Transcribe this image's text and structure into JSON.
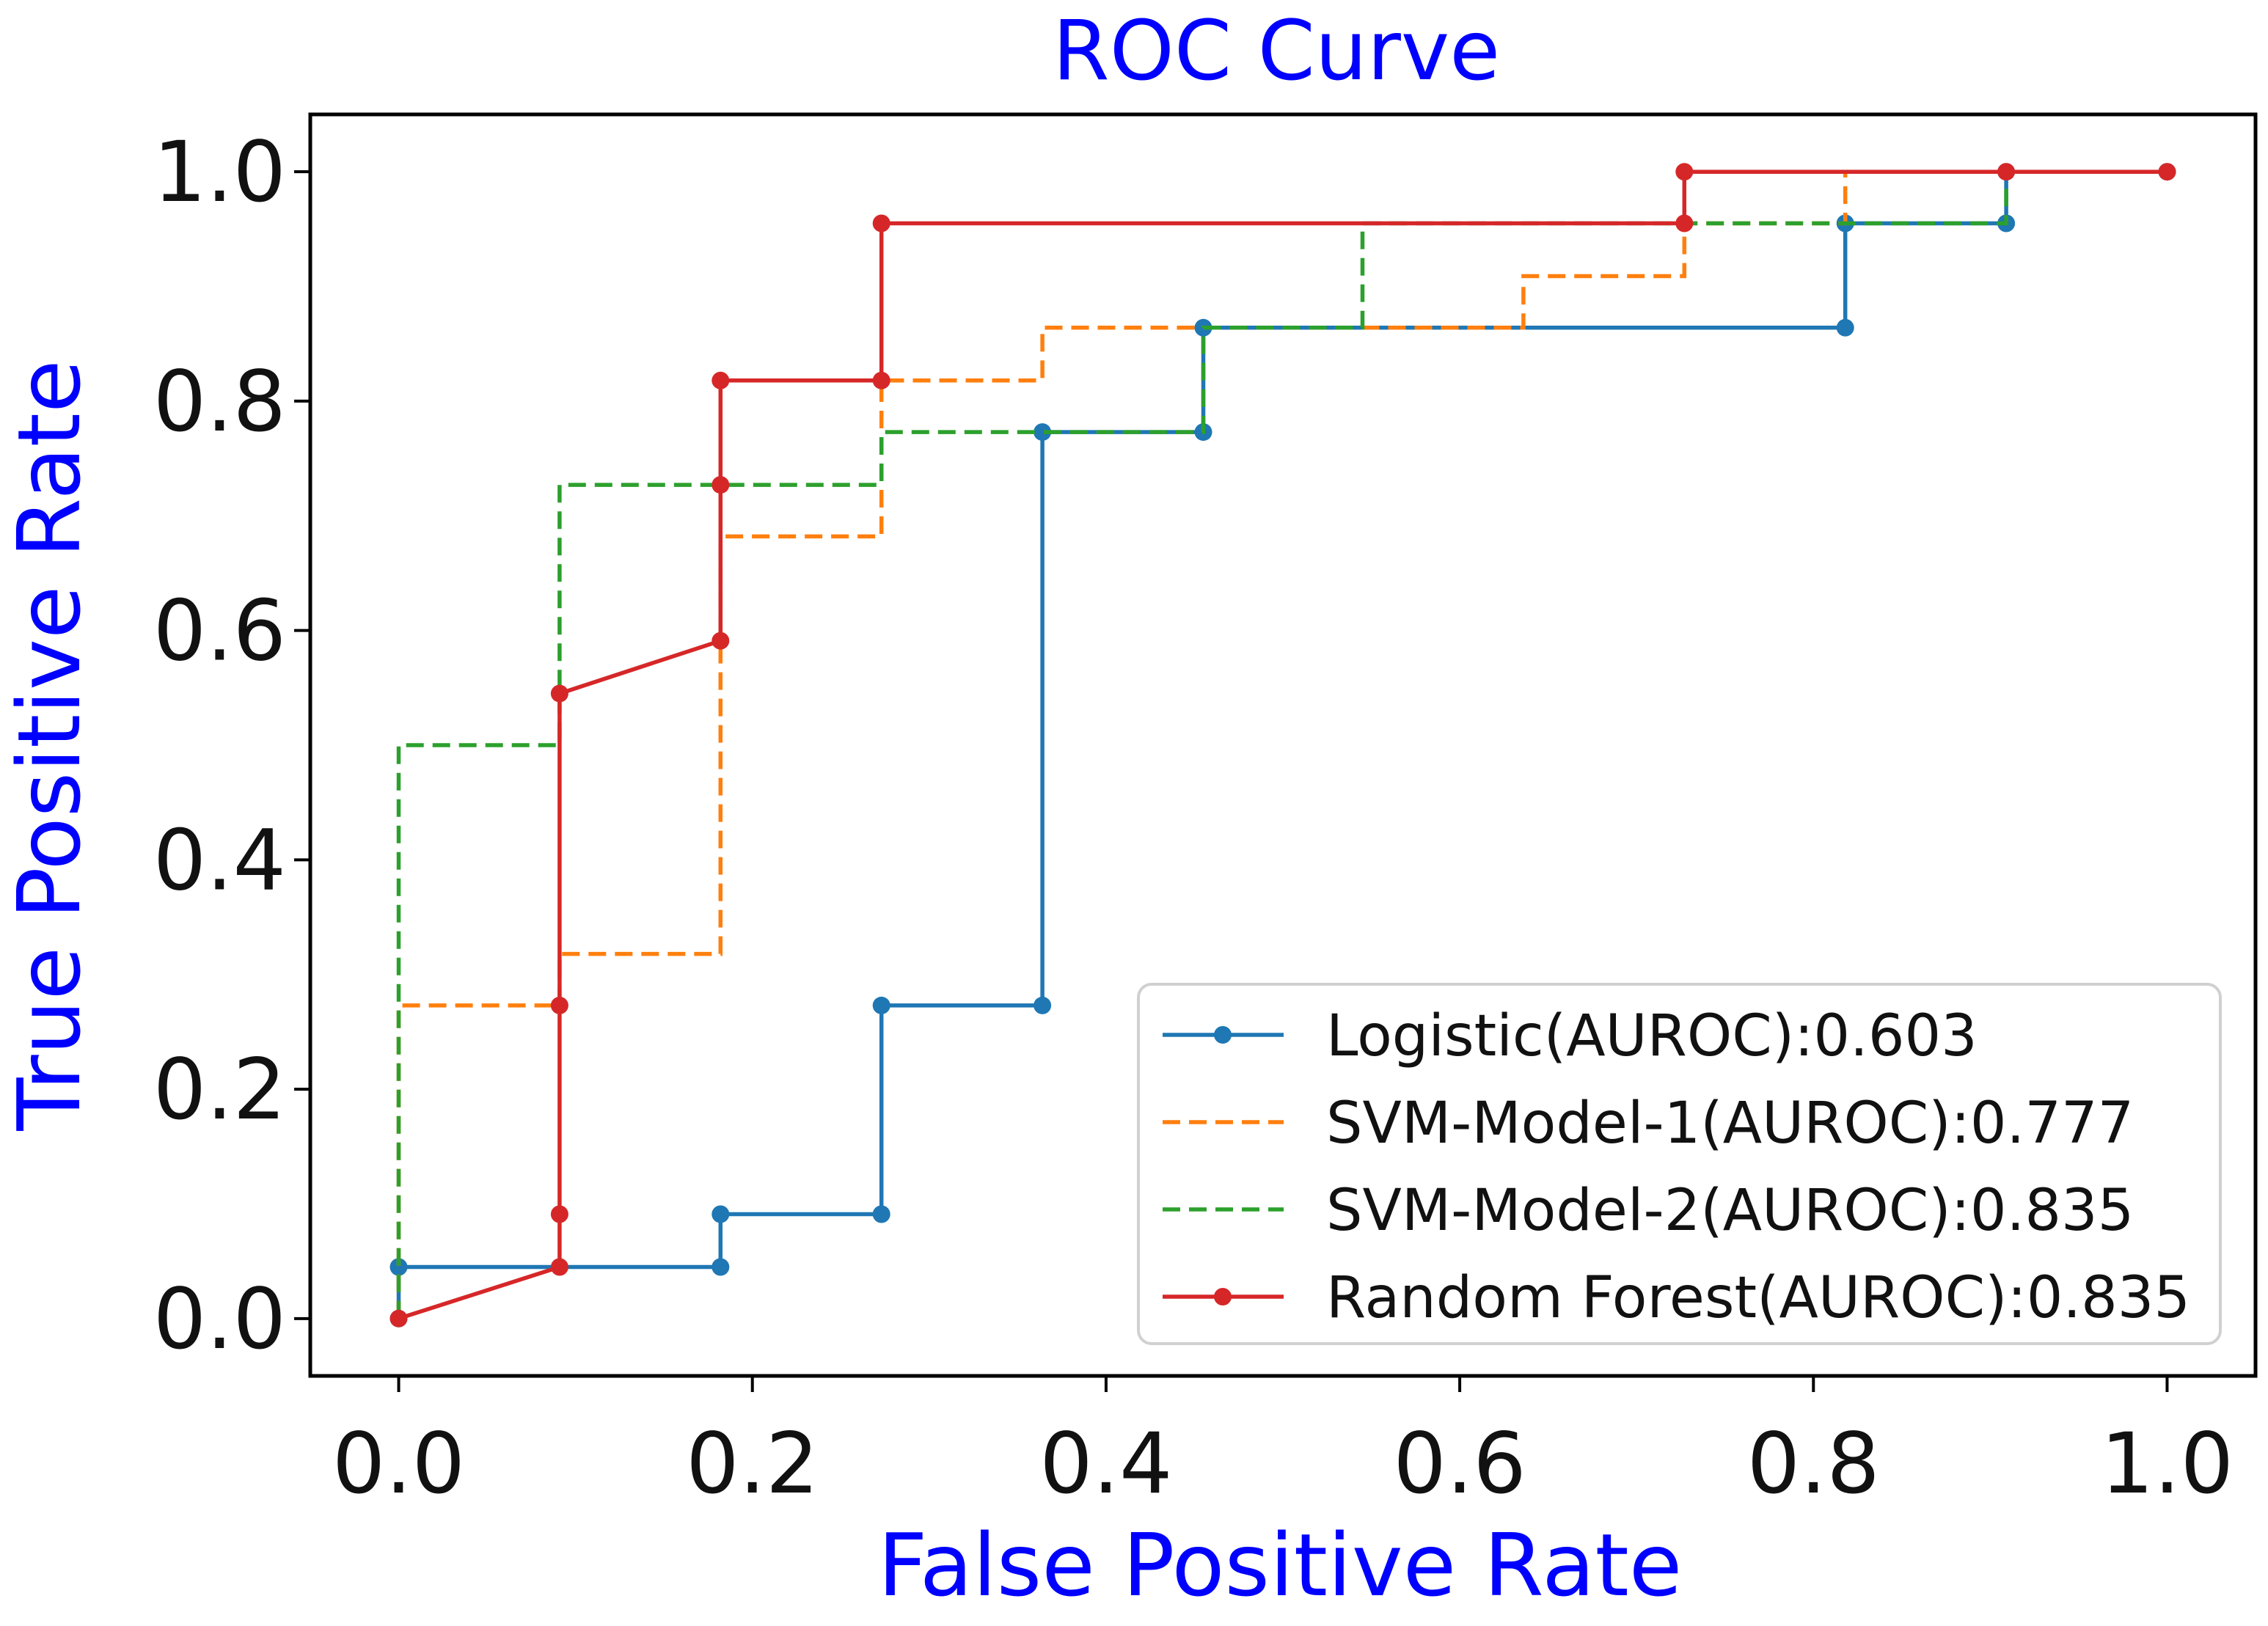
{
  "chart_data": {
    "type": "line",
    "title": "ROC Curve",
    "xlabel": "False Positive Rate",
    "ylabel": "True Positive Rate",
    "xlim": [
      -0.05,
      1.05
    ],
    "ylim": [
      -0.05,
      1.05
    ],
    "xticks": [
      "0.0",
      "0.2",
      "0.4",
      "0.6",
      "0.8",
      "1.0"
    ],
    "yticks": [
      "0.0",
      "0.2",
      "0.4",
      "0.6",
      "0.8",
      "1.0"
    ],
    "grid": false,
    "legend_position": "lower right",
    "label_color": "#0000ff",
    "series": [
      {
        "name": "Logistic(AUROC):0.603",
        "color": "#1f77b4",
        "style": "solid",
        "markers": true,
        "x": [
          0.0,
          0.0,
          0.182,
          0.182,
          0.273,
          0.273,
          0.364,
          0.364,
          0.455,
          0.455,
          0.818,
          0.818,
          0.909,
          0.909,
          1.0
        ],
        "y": [
          0.0,
          0.045,
          0.045,
          0.091,
          0.091,
          0.273,
          0.273,
          0.773,
          0.773,
          0.864,
          0.864,
          0.955,
          0.955,
          1.0,
          1.0
        ]
      },
      {
        "name": "SVM-Model-1(AUROC):0.777",
        "color": "#ff7f0e",
        "style": "dashed",
        "markers": false,
        "x": [
          0.0,
          0.0,
          0.091,
          0.091,
          0.182,
          0.182,
          0.273,
          0.273,
          0.364,
          0.364,
          0.636,
          0.636,
          0.727,
          0.727,
          0.818,
          0.818,
          1.0
        ],
        "y": [
          0.0,
          0.273,
          0.273,
          0.318,
          0.318,
          0.682,
          0.682,
          0.818,
          0.818,
          0.864,
          0.864,
          0.909,
          0.909,
          0.955,
          0.955,
          1.0,
          1.0
        ]
      },
      {
        "name": "SVM-Model-2(AUROC):0.835",
        "color": "#2ca02c",
        "style": "dashed",
        "markers": false,
        "x": [
          0.0,
          0.0,
          0.091,
          0.091,
          0.273,
          0.273,
          0.455,
          0.455,
          0.545,
          0.545,
          0.909,
          0.909,
          1.0
        ],
        "y": [
          0.0,
          0.5,
          0.5,
          0.727,
          0.727,
          0.773,
          0.773,
          0.864,
          0.864,
          0.955,
          0.955,
          1.0,
          1.0
        ]
      },
      {
        "name": "Random Forest(AUROC):0.835",
        "color": "#d62728",
        "style": "solid",
        "markers": true,
        "x": [
          0.0,
          0.091,
          0.091,
          0.091,
          0.091,
          0.182,
          0.182,
          0.182,
          0.273,
          0.273,
          0.727,
          0.727,
          0.909,
          1.0
        ],
        "y": [
          0.0,
          0.045,
          0.091,
          0.273,
          0.545,
          0.591,
          0.727,
          0.818,
          0.818,
          0.955,
          0.955,
          1.0,
          1.0,
          1.0
        ]
      }
    ]
  }
}
